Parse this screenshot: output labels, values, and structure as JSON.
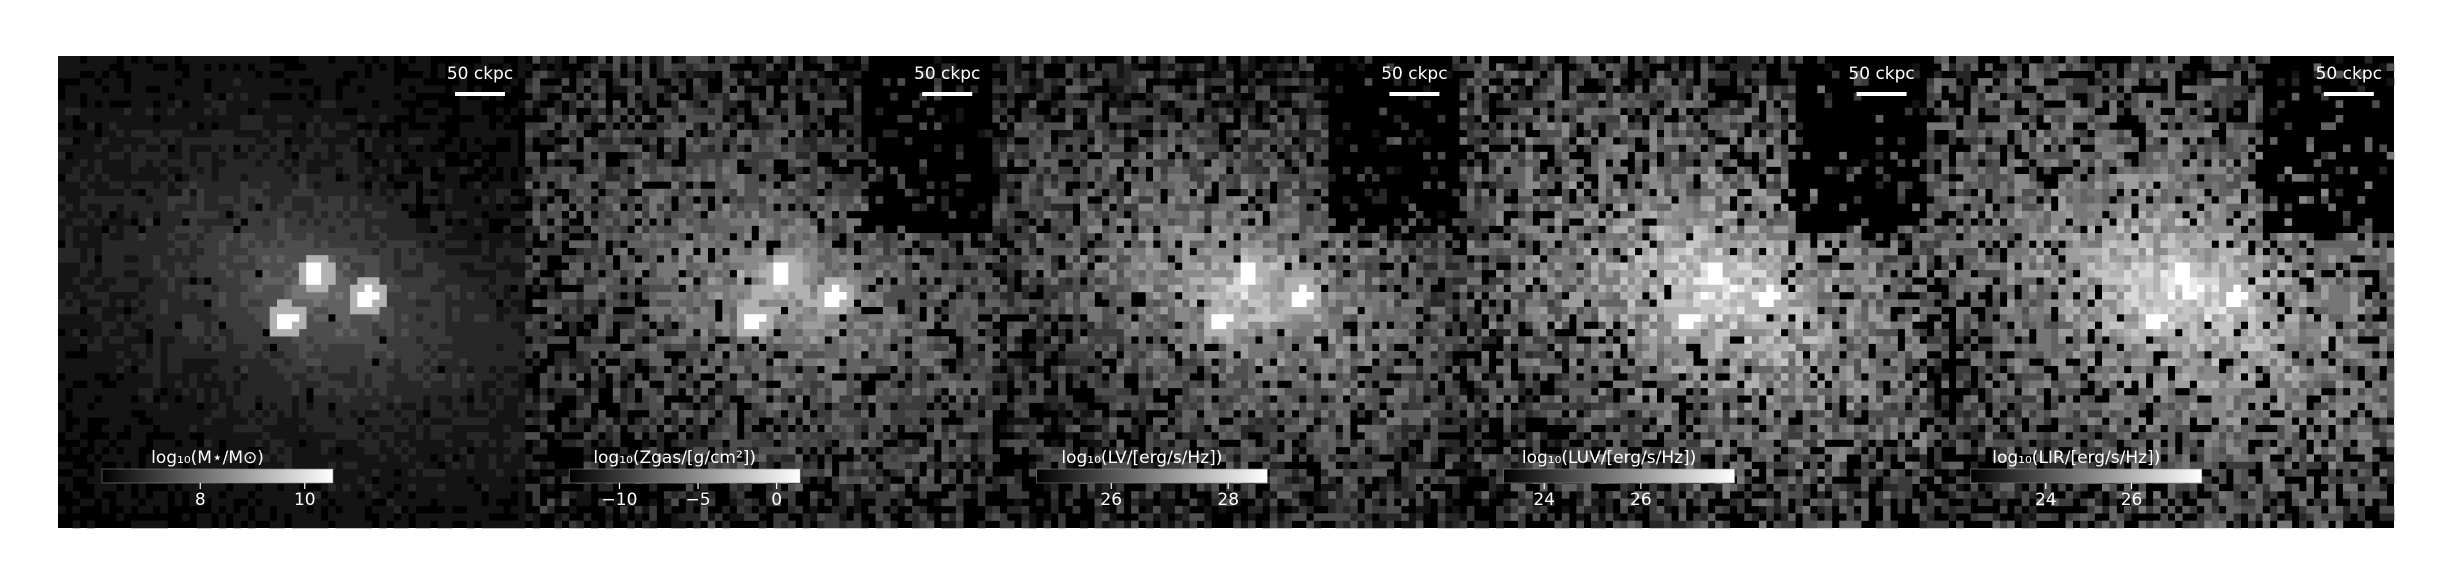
{
  "panels": [
    {
      "scale_label": "50 ckpc",
      "colorbar": {
        "label": "log₁₀(M⋆/M⊙)",
        "clim": [
          6.12,
          10.54
        ],
        "ticks": [
          8,
          10
        ]
      }
    },
    {
      "scale_label": "50 ckpc",
      "colorbar": {
        "label": "log₁₀(Zgas/[g/cm²])",
        "clim": [
          -13.2,
          1.5
        ],
        "ticks": [
          {
            "value": -10,
            "label": "−10"
          },
          {
            "value": -5,
            "label": "−5"
          },
          0
        ]
      }
    },
    {
      "scale_label": "50 ckpc",
      "colorbar": {
        "label": "log₁₀(LV/[erg/s/Hz])",
        "clim": [
          24.72,
          28.67
        ],
        "ticks": [
          26,
          28
        ]
      }
    },
    {
      "scale_label": "50 ckpc",
      "colorbar": {
        "label": "log₁₀(LUV/[erg/s/Hz])",
        "clim": [
          23.16,
          27.94
        ],
        "ticks": [
          24,
          26
        ]
      }
    },
    {
      "scale_label": "50 ckpc",
      "colorbar": {
        "label": "log₁₀(LIR/[erg/s/Hz])",
        "clim": [
          22.25,
          27.64
        ],
        "ticks": [
          24,
          26
        ]
      }
    }
  ]
}
